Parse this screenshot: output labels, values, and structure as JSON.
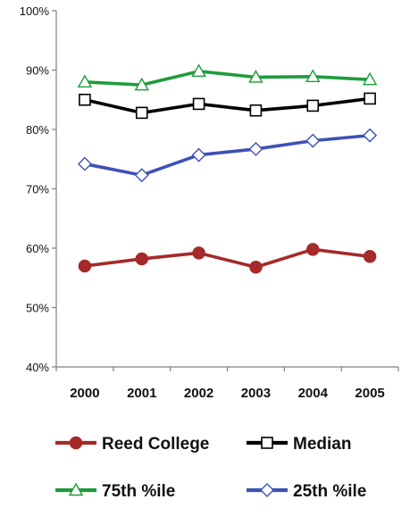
{
  "chart_data": {
    "type": "line",
    "title": "",
    "xlabel": "",
    "ylabel": "",
    "categories": [
      "2000",
      "2001",
      "2002",
      "2003",
      "2004",
      "2005"
    ],
    "ylim": [
      40,
      100
    ],
    "yticks": [
      40,
      50,
      60,
      70,
      80,
      90,
      100
    ],
    "ytick_labels": [
      "40%",
      "50%",
      "60%",
      "70%",
      "80%",
      "90%",
      "100%"
    ],
    "grid": false,
    "legend_placement": "bottom",
    "series": [
      {
        "key": "reed",
        "name": "Reed College",
        "values": [
          57.0,
          58.2,
          59.2,
          56.8,
          59.8,
          58.6
        ],
        "color": "#a52a2a",
        "marker": "circle-filled"
      },
      {
        "key": "median",
        "name": "Median",
        "values": [
          85.0,
          82.8,
          84.3,
          83.2,
          84.0,
          85.2
        ],
        "color": "#000000",
        "marker": "square-open"
      },
      {
        "key": "p75",
        "name": "75th %ile",
        "values": [
          88.0,
          87.5,
          89.8,
          88.8,
          88.9,
          88.4
        ],
        "color": "#1e9c3c",
        "marker": "triangle-open"
      },
      {
        "key": "p25",
        "name": "25th %ile",
        "values": [
          74.2,
          72.3,
          75.7,
          76.7,
          78.1,
          79.0
        ],
        "color": "#3f51b5",
        "marker": "diamond-open"
      }
    ]
  }
}
